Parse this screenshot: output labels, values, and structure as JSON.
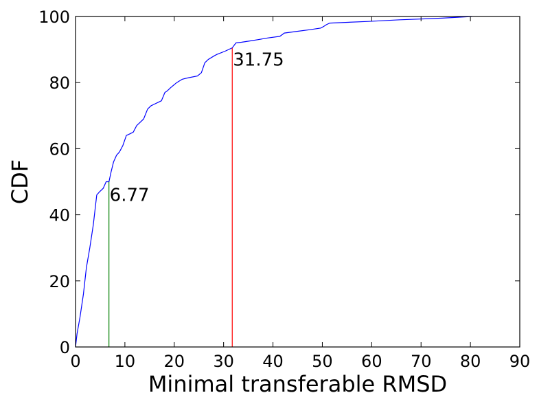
{
  "chart_data": {
    "type": "line",
    "title": "",
    "xlabel": "Minimal transferable RMSD",
    "ylabel": "CDF",
    "xlim": [
      0,
      90
    ],
    "ylim": [
      0,
      100
    ],
    "xticks": [
      0,
      10,
      20,
      30,
      40,
      50,
      60,
      70,
      80,
      90
    ],
    "yticks": [
      0,
      20,
      40,
      60,
      80,
      100
    ],
    "grid": false,
    "series": [
      {
        "color": "#0000ff",
        "x": [
          0,
          0.3,
          0.9,
          1.6,
          2.2,
          2.9,
          3.6,
          4.3,
          4.9,
          5.6,
          6.2,
          6.77,
          7.2,
          7.7,
          8.3,
          8.9,
          9.6,
          10.3,
          11.0,
          11.7,
          12.4,
          13.1,
          13.8,
          14.6,
          15.3,
          16.0,
          16.7,
          17.4,
          18.1,
          18.6,
          19.3,
          20.5,
          21.6,
          22.1,
          23.0,
          24.7,
          25.5,
          26.2,
          26.9,
          28.0,
          28.6,
          30.3,
          31.75,
          32.5,
          33.6,
          35.3,
          37.0,
          38.9,
          41.4,
          42.3,
          44.9,
          47.5,
          49.7,
          50.3,
          50.8,
          51.5,
          59.3,
          65.7,
          74.3,
          80.3
        ],
        "y": [
          0,
          4,
          9,
          16,
          24,
          30,
          37,
          46,
          47,
          48,
          50,
          50,
          53,
          56,
          58,
          59,
          61,
          64,
          64.5,
          65,
          67,
          68,
          69,
          72,
          73,
          73.5,
          74,
          74.5,
          77,
          77.5,
          78.5,
          80,
          81,
          81.2,
          81.5,
          82,
          83,
          86,
          87,
          88,
          88.5,
          89.5,
          90.5,
          92,
          92.2,
          92.6,
          93,
          93.5,
          94,
          95,
          95.5,
          96,
          96.5,
          97,
          97.5,
          98,
          98.5,
          99,
          99.5,
          100
        ]
      }
    ],
    "markers": [
      {
        "x": 6.77,
        "y_top": 50,
        "label": "6.77",
        "label_y": 46,
        "color": "#008000"
      },
      {
        "x": 31.75,
        "y_top": 90.5,
        "label": "31.75",
        "label_y": 87,
        "color": "#ff0000"
      }
    ]
  }
}
